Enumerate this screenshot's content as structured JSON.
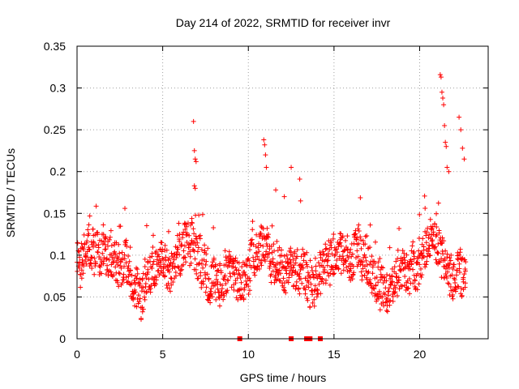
{
  "chart_data": {
    "type": "scatter",
    "title": "Day 214 of 2022, SRMTID for receiver invr",
    "xlabel": "GPS time / hours",
    "ylabel": "SRMTID / TECUs",
    "xlim": [
      0,
      24
    ],
    "ylim": [
      0,
      0.35
    ],
    "xticks": [
      0,
      5,
      10,
      15,
      20
    ],
    "xtick_labels": [
      "0",
      "5",
      "10",
      "15",
      "20"
    ],
    "yticks": [
      0,
      0.05,
      0.1,
      0.15,
      0.2,
      0.25,
      0.3,
      0.35
    ],
    "ytick_labels": [
      "0",
      "0.05",
      "0.1",
      "0.15",
      "0.2",
      "0.25",
      "0.3",
      "0.35"
    ],
    "grid": true,
    "marker": "plus",
    "color": "#ff0000",
    "data_span_hours": [
      0,
      22.7
    ],
    "typical_range": [
      0.03,
      0.17
    ],
    "series": [
      {
        "name": "SRMTID",
        "x": [
          6.8,
          6.85,
          6.9,
          6.95,
          6.85,
          6.9,
          10.9,
          10.95,
          11.0,
          11.05,
          11.6,
          12.1,
          12.5,
          13.0,
          13.05,
          21.2,
          21.25,
          21.3,
          21.35,
          21.4,
          21.45,
          21.5,
          21.55,
          21.6,
          21.7,
          22.3,
          22.4,
          22.5,
          22.6
        ],
        "y": [
          0.26,
          0.225,
          0.215,
          0.212,
          0.183,
          0.18,
          0.238,
          0.232,
          0.22,
          0.205,
          0.178,
          0.17,
          0.205,
          0.191,
          0.165,
          0.316,
          0.313,
          0.295,
          0.288,
          0.28,
          0.255,
          0.235,
          0.23,
          0.205,
          0.2,
          0.265,
          0.25,
          0.228,
          0.215
        ]
      }
    ],
    "zero_value_x": [
      9.5,
      12.5,
      13.4,
      13.5,
      13.6,
      14.2
    ]
  }
}
